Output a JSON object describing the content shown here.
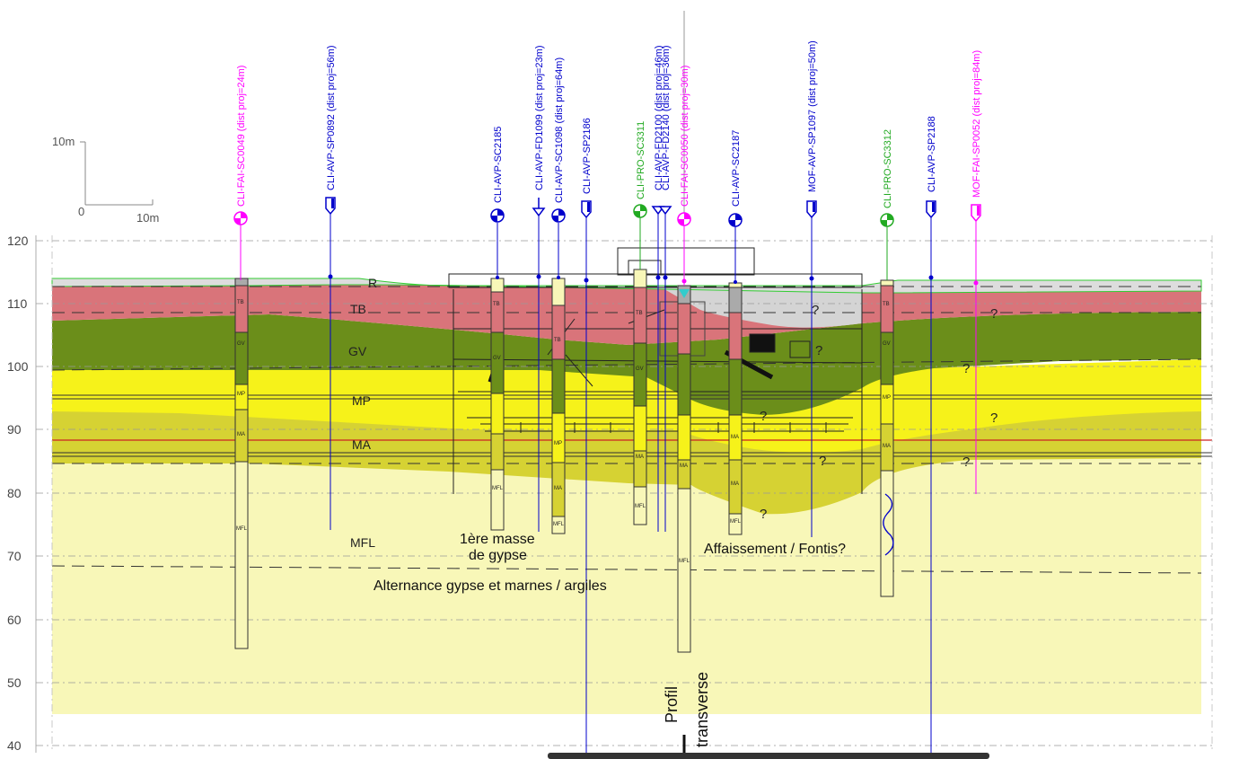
{
  "scale_bar": {
    "vertical_label": "10m",
    "origin_label": "0",
    "horizontal_label": "10m"
  },
  "elevation_axis": {
    "ticks": [
      "120",
      "110",
      "100",
      "90",
      "80",
      "70",
      "60",
      "50",
      "40"
    ]
  },
  "layers": {
    "R": "R",
    "TB": "TB",
    "GV": "GV",
    "MP": "MP",
    "MA": "MA",
    "MFL": "MFL"
  },
  "annotations": {
    "gypse_1": "1ère masse",
    "gypse_2": "de gypse",
    "alternance": "Alternance gypse et marnes / argiles",
    "affaissement": "Affaissement / Fontis?",
    "profil_1": "Profil",
    "profil_2": "transverse",
    "question": "?"
  },
  "boreholes": [
    {
      "label": "CLI-FAI-SC0049 (dist proj=24m)",
      "color": "#ff00ff",
      "symbol": "circle"
    },
    {
      "label": "CLI-AVP-SP0892 (dist proj=56m)",
      "color": "#0000cc",
      "symbol": "tag"
    },
    {
      "label": "CLI-AVP-SC2185",
      "color": "#0000cc",
      "symbol": "circle"
    },
    {
      "label": "CLI-AVP-FD1099 (dist proj=23m)",
      "color": "#0000cc",
      "symbol": "arrow"
    },
    {
      "label": "CLI-AVP-SC1098 (dist proj=64m)",
      "color": "#0000cc",
      "symbol": "circle"
    },
    {
      "label": "CLI-AVP-SP2186",
      "color": "#0000cc",
      "symbol": "tag"
    },
    {
      "label": "CLI-PRO-SC3311",
      "color": "#22aa22",
      "symbol": "circle"
    },
    {
      "label": "CLI-AVP-FD2100 (dist proj=46m)",
      "color": "#0000cc",
      "symbol": "arrow"
    },
    {
      "label": "CLI-AVP-FD2140 (dist proj=36m)",
      "color": "#0000cc",
      "symbol": "arrow"
    },
    {
      "label": "CLI-FAI-SC0050 (dist proj=30m)",
      "color": "#ff00ff",
      "symbol": "circle"
    },
    {
      "label": "CLI-AVP-SC2187",
      "color": "#0000cc",
      "symbol": "circle"
    },
    {
      "label": "MOF-AVP-SP1097 (dist proj=50m)",
      "color": "#0000cc",
      "symbol": "tag"
    },
    {
      "label": "CLI-PRO-SC3312",
      "color": "#22aa22",
      "symbol": "circle"
    },
    {
      "label": "CLI-AVP-SP2188",
      "color": "#0000cc",
      "symbol": "tag"
    },
    {
      "label": "MOF-FAI-SP0052 (dist proj=84m)",
      "color": "#ff00ff",
      "symbol": "tag"
    }
  ],
  "log_labels": {
    "tb": "TB",
    "gv": "GV",
    "mp": "MP",
    "ma": "MA",
    "mfl": "MFL",
    "r": "R"
  },
  "colors": {
    "remblai": "#d4d4d4",
    "tb": "#d9747a",
    "gv": "#6b8e1a",
    "mp": "#f6f21a",
    "ma": "#d6d233",
    "mfl": "#f8f7b8",
    "magenta": "#ff00ff",
    "blue": "#0000cc",
    "green": "#22aa22"
  }
}
